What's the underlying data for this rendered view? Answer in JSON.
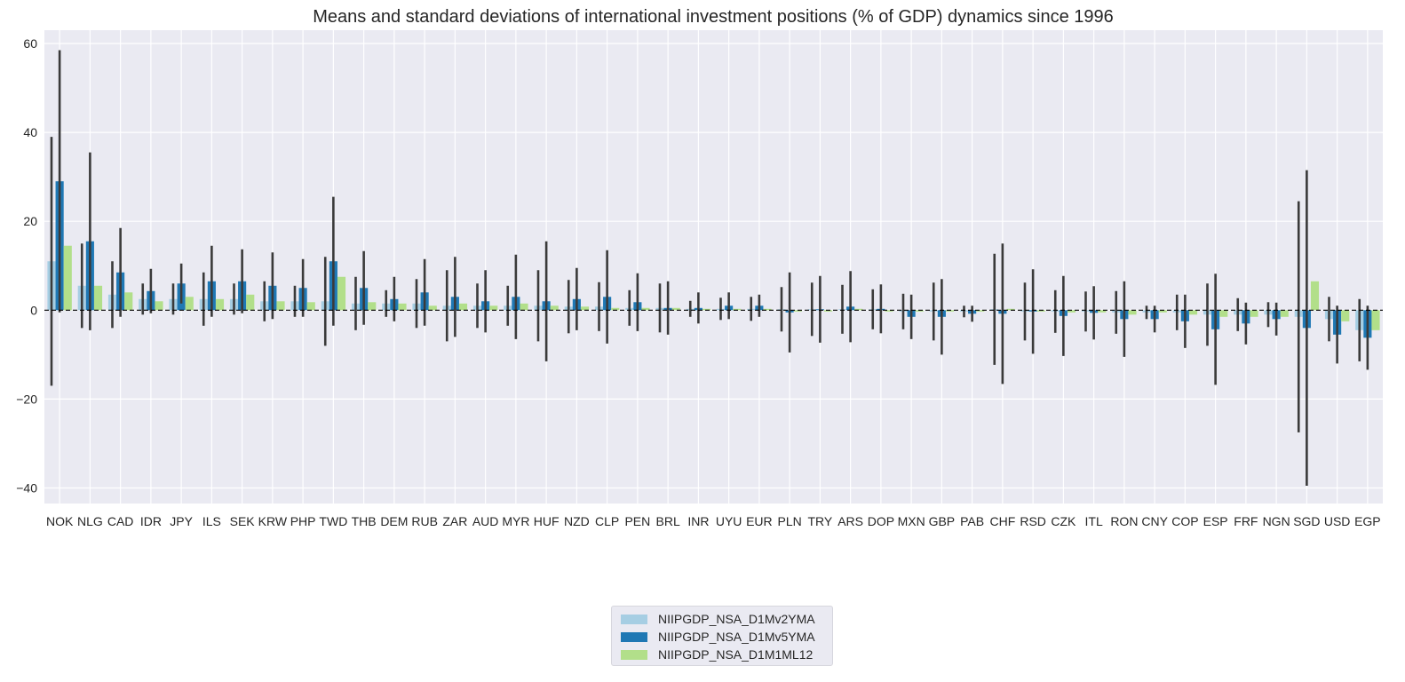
{
  "chart_data": {
    "type": "bar",
    "title": "Means and standard deviations of international investment positions (% of GDP) dynamics since 1996",
    "xlabel": "",
    "ylabel": "",
    "ylim": [
      -43.5,
      63
    ],
    "yticks": [
      -40,
      -20,
      0,
      20,
      40,
      60
    ],
    "ytick_labels": [
      "−40",
      "−20",
      "0",
      "20",
      "40",
      "60"
    ],
    "grid": true,
    "legend_position": "bottom-center",
    "reference_line": 0,
    "categories": [
      "NOK",
      "NLG",
      "CAD",
      "IDR",
      "JPY",
      "ILS",
      "SEK",
      "KRW",
      "PHP",
      "TWD",
      "THB",
      "DEM",
      "RUB",
      "ZAR",
      "AUD",
      "MYR",
      "HUF",
      "NZD",
      "CLP",
      "PEN",
      "BRL",
      "INR",
      "UYU",
      "EUR",
      "PLN",
      "TRY",
      "ARS",
      "DOP",
      "MXN",
      "GBP",
      "PAB",
      "CHF",
      "RSD",
      "CZK",
      "ITL",
      "RON",
      "CNY",
      "COP",
      "ESP",
      "FRF",
      "NGN",
      "SGD",
      "USD",
      "EGP"
    ],
    "series": [
      {
        "name": "NIIPGDP_NSA_D1Mv2YMA",
        "color": "#a6cee3",
        "values": [
          11,
          5.5,
          3.5,
          2.5,
          2.5,
          2.5,
          2.5,
          2,
          2,
          2,
          1.5,
          1.5,
          1.5,
          1,
          1,
          1,
          1,
          0.8,
          0.8,
          0.5,
          0.5,
          0.3,
          0.3,
          0.3,
          0.2,
          0.2,
          0.2,
          0.2,
          -0.3,
          -0.3,
          -0.3,
          0.2,
          -0.3,
          -0.3,
          -0.3,
          -0.5,
          -0.5,
          -0.5,
          -1,
          -1,
          -1,
          -1.5,
          -2,
          -4.5
        ],
        "err": [
          28,
          9.5,
          7.5,
          3.5,
          3.5,
          6,
          3.5,
          4.5,
          3.5,
          10,
          6,
          3,
          5.5,
          8,
          5,
          4.5,
          8,
          6,
          5.5,
          4,
          5.5,
          1.8,
          2.5,
          2.7,
          5,
          6,
          5.5,
          4.5,
          4,
          6.5,
          1.3,
          12.5,
          6.5,
          4.8,
          4.5,
          4.8,
          1.5,
          4,
          7,
          3.7,
          2.8,
          26,
          5,
          7
        ]
      },
      {
        "name": "NIIPGDP_NSA_D1Mv5YMA",
        "color": "#1f78b4",
        "values": [
          29,
          15.5,
          8.5,
          4.3,
          6,
          6.5,
          6.5,
          5.5,
          5,
          11,
          5,
          2.5,
          4,
          3,
          2,
          3,
          2,
          2.5,
          3,
          1.8,
          0.5,
          0.5,
          1,
          1,
          -0.5,
          0.2,
          0.8,
          0.3,
          -1.5,
          -1.5,
          -0.8,
          -0.8,
          -0.3,
          -1.3,
          -0.6,
          -2,
          -2,
          -2.5,
          -4.3,
          -3,
          -2,
          -4,
          -5.5,
          -6.2
        ],
        "err": [
          29.5,
          20,
          10,
          5,
          4.5,
          8,
          7.2,
          7.5,
          6.5,
          14.5,
          8.3,
          5,
          7.5,
          9,
          7,
          9.5,
          13.5,
          7,
          10.5,
          6.5,
          6,
          3.5,
          3,
          2.5,
          9,
          7.5,
          8,
          5.5,
          5,
          8.5,
          1.8,
          15.8,
          9.5,
          9,
          6,
          8.5,
          3,
          6,
          12.5,
          4.7,
          3.7,
          35.5,
          6.5,
          7.2
        ]
      },
      {
        "name": "NIIPGDP_NSA_D1M1ML12",
        "color": "#b2df8a",
        "values": [
          14.5,
          5.5,
          4,
          2,
          3,
          2.5,
          3.5,
          2,
          1.8,
          7.5,
          1.8,
          1.5,
          1,
          1.5,
          1,
          1.5,
          1,
          0.8,
          0.5,
          0.5,
          0.5,
          0.3,
          0.3,
          0.3,
          -0.3,
          -0.3,
          0.3,
          -0.3,
          -0.3,
          -0.3,
          -0.3,
          0.3,
          -0.3,
          -0.5,
          -0.5,
          -1,
          -0.5,
          -1,
          -1.5,
          -1.5,
          -1.5,
          6.5,
          -2.5,
          -4.5
        ]
      }
    ]
  },
  "legend": {
    "items": [
      {
        "label": "NIIPGDP_NSA_D1Mv2YMA",
        "color": "#a6cee3"
      },
      {
        "label": "NIIPGDP_NSA_D1Mv5YMA",
        "color": "#1f78b4"
      },
      {
        "label": "NIIPGDP_NSA_D1M1ML12",
        "color": "#b2df8a"
      }
    ]
  },
  "colors": {
    "plot_background": "#eaeaf2",
    "grid": "#ffffff",
    "errorbar": "#3a3a3a",
    "reference_line": "#000000"
  }
}
